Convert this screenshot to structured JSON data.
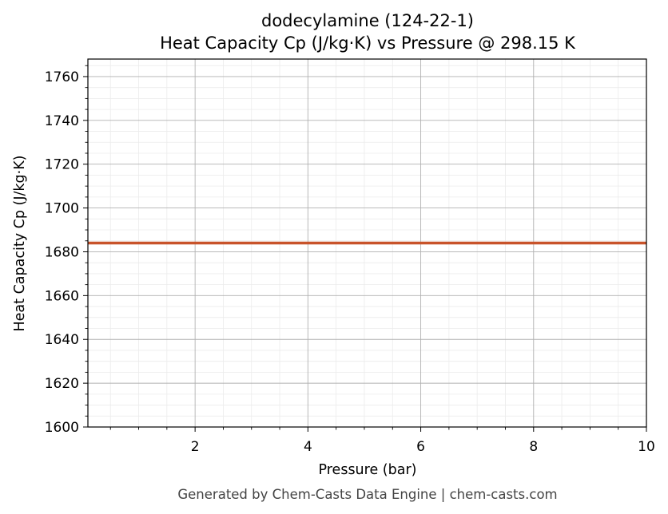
{
  "chart_data": {
    "type": "line",
    "title": "dodecylamine (124-22-1)",
    "subtitle": "Heat Capacity Cp (J/kg·K) vs Pressure @ 298.15 K",
    "xlabel": "Pressure (bar)",
    "ylabel": "Heat Capacity Cp (J/kg·K)",
    "xlim": [
      0.1,
      10
    ],
    "ylim": [
      1600,
      1768
    ],
    "xticks": [
      2,
      4,
      6,
      8,
      10
    ],
    "yticks": [
      1600,
      1620,
      1640,
      1660,
      1680,
      1700,
      1720,
      1740,
      1760
    ],
    "grid": true,
    "minor_grid": true,
    "series": [
      {
        "color": "#c8532a",
        "x": [
          0.1,
          10
        ],
        "y": [
          1684,
          1684
        ]
      }
    ]
  },
  "footer": "Generated by Chem-Casts Data Engine | chem-casts.com"
}
